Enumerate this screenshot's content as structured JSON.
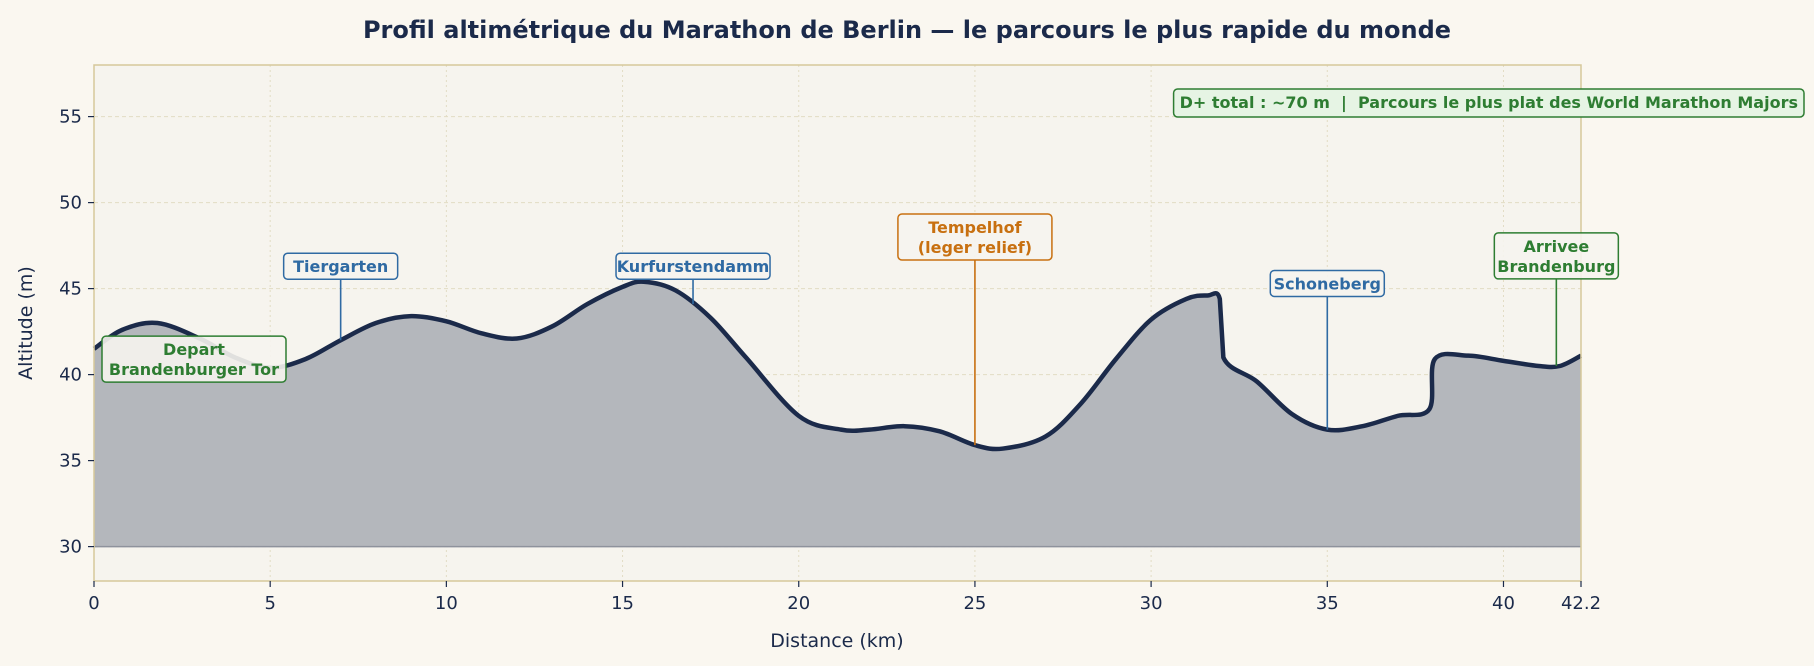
{
  "chart_data": {
    "type": "area",
    "title": "Profil altimétrique du Marathon de Berlin — le parcours le plus rapide du monde",
    "xlabel": "Distance (km)",
    "ylabel": "Altitude (m)",
    "xlim": [
      0,
      42.2
    ],
    "ylim": [
      28,
      58
    ],
    "fill_baseline": 30,
    "xticks": [
      0,
      5,
      10,
      15,
      20,
      25,
      30,
      35,
      40,
      42.2
    ],
    "xtick_labels": [
      "0",
      "5",
      "10",
      "15",
      "20",
      "25",
      "30",
      "35",
      "40",
      "42.2"
    ],
    "yticks": [
      30,
      35,
      40,
      45,
      50,
      55
    ],
    "ytick_labels": [
      "30",
      "35",
      "40",
      "45",
      "50",
      "55"
    ],
    "grid": true,
    "series": [
      {
        "x": [
          0,
          0.8,
          1.8,
          3,
          4,
          5,
          6,
          7,
          8,
          9,
          10,
          11,
          12,
          13,
          14,
          15,
          15.6,
          16.5,
          17.5,
          18.5,
          20,
          21.2,
          22,
          23,
          24,
          25,
          25.8,
          27,
          28,
          29,
          30,
          31,
          31.6,
          31.95,
          32.05,
          33,
          34,
          35,
          36,
          37,
          37.9,
          38.05,
          39,
          40,
          41,
          41.6,
          42.2
        ],
        "y": [
          41.5,
          42.6,
          43.0,
          42.1,
          41.0,
          40.4,
          40.9,
          42.0,
          43.0,
          43.4,
          43.1,
          42.4,
          42.1,
          42.8,
          44.1,
          45.1,
          45.4,
          44.9,
          43.3,
          41.0,
          37.6,
          36.8,
          36.8,
          37.0,
          36.7,
          35.9,
          35.7,
          36.4,
          38.3,
          40.9,
          43.2,
          44.4,
          44.6,
          44.4,
          41.0,
          39.6,
          37.7,
          36.8,
          37.0,
          37.6,
          38.0,
          40.9,
          41.1,
          40.8,
          40.5,
          40.5,
          41.1
        ]
      }
    ],
    "annotations": [
      {
        "text": "Depart\nBrandenburger Tor",
        "x": 0,
        "y": 41.5,
        "label_x": 0.5,
        "label_y": 40.9,
        "color": "#2e7d32",
        "arrow": false
      },
      {
        "text": "Tiergarten",
        "x": 7,
        "y": 42.0,
        "label_x": 7,
        "label_y": 46.3,
        "color": "#2f6aa3",
        "arrow": true
      },
      {
        "text": "Kurfurstendamm",
        "x": 17,
        "y": 44.1,
        "label_x": 17,
        "label_y": 46.3,
        "color": "#2f6aa3",
        "arrow": true
      },
      {
        "text": "Tempelhof\n(leger relief)",
        "x": 25,
        "y": 35.9,
        "label_x": 25,
        "label_y": 48.0,
        "color": "#c87010",
        "arrow": true
      },
      {
        "text": "Schoneberg",
        "x": 35,
        "y": 36.8,
        "label_x": 35,
        "label_y": 45.3,
        "color": "#2f6aa3",
        "arrow": true
      },
      {
        "text": "Arrivee\nBrandenburg",
        "x": 41.5,
        "y": 40.5,
        "label_x": 41.5,
        "label_y": 46.9,
        "color": "#2e7d32",
        "arrow": true
      }
    ],
    "info_box": {
      "text": "D+ total : ~70 m  |  Parcours le plus plat des World Marathon Majors",
      "color": "#2e7d32",
      "position": "top-right"
    },
    "colors": {
      "line": "#1b2a4a",
      "fill": "#b4b7bc",
      "background": "#faf7f0",
      "plot_background": "#f6f4ee",
      "frame": "#d6c89a",
      "grid": "#e2dcc4"
    }
  }
}
